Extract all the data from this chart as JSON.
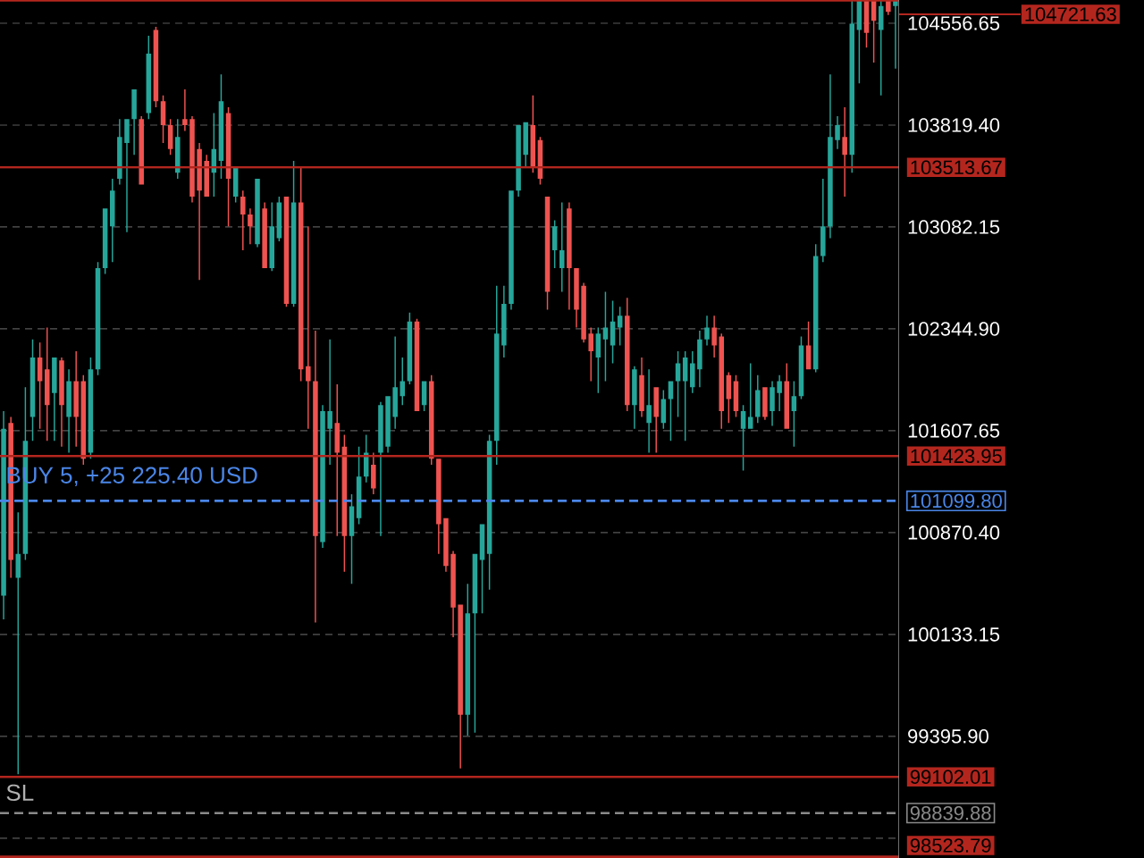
{
  "chart_data": {
    "type": "candlestick",
    "categories": [
      null,
      null,
      null,
      null,
      null,
      null,
      null,
      null,
      null,
      null,
      null,
      null,
      null,
      null,
      null,
      null,
      null,
      null,
      null,
      null,
      null,
      null,
      null,
      null,
      null,
      null,
      null,
      null,
      null,
      null,
      null,
      null,
      null,
      null,
      null,
      null,
      null,
      null,
      null,
      null,
      null,
      null,
      null,
      null,
      null,
      null,
      null,
      null,
      null,
      null,
      null,
      null,
      null,
      null,
      null,
      null,
      null,
      null,
      null,
      null,
      null,
      null,
      null,
      null,
      null,
      null,
      null,
      null,
      null,
      null,
      null,
      null,
      null,
      null,
      null,
      null,
      null,
      null,
      null,
      null,
      null,
      null,
      null,
      null,
      null,
      null,
      null,
      null,
      null,
      null,
      null,
      null,
      null,
      null,
      null,
      null,
      null,
      null,
      null,
      null,
      null,
      null,
      null,
      null,
      null,
      null,
      null,
      null,
      null,
      null,
      null,
      null,
      null,
      null,
      null,
      null,
      null,
      null,
      null,
      null,
      null,
      null,
      null,
      null
    ],
    "ohlc": [
      [
        100414,
        101750,
        100242,
        101621
      ],
      [
        101664,
        101707,
        100543,
        100673
      ],
      [
        100543,
        101017,
        99121,
        100716
      ],
      [
        100716,
        101923,
        100673,
        101535
      ],
      [
        101707,
        102268,
        101535,
        102138
      ],
      [
        102138,
        102246,
        101621,
        101966
      ],
      [
        102052,
        102354,
        101535,
        101793
      ],
      [
        101880,
        102138,
        101535,
        102138
      ],
      [
        102117,
        102138,
        101492,
        101793
      ],
      [
        101707,
        102052,
        101449,
        101966
      ],
      [
        101966,
        102182,
        101492,
        101707
      ],
      [
        101966,
        102009,
        101362,
        101405
      ],
      [
        101449,
        102138,
        101405,
        102052
      ],
      [
        102052,
        102828,
        102009,
        102785
      ],
      [
        102785,
        103216,
        102742,
        103216
      ],
      [
        103087,
        103432,
        102828,
        103345
      ],
      [
        103432,
        103863,
        103389,
        103733
      ],
      [
        103690,
        103863,
        103044,
        103863
      ],
      [
        103863,
        104078,
        103604,
        104078
      ],
      [
        103863,
        103884,
        103389,
        103389
      ],
      [
        103906,
        104466,
        103863,
        104337
      ],
      [
        104509,
        104531,
        103949,
        103992
      ],
      [
        103992,
        104035,
        103690,
        103820
      ],
      [
        103820,
        103863,
        103604,
        103647
      ],
      [
        103475,
        103863,
        103432,
        103733
      ],
      [
        103863,
        104078,
        103777,
        103820
      ],
      [
        103863,
        103884,
        103259,
        103302
      ],
      [
        103647,
        103690,
        102699,
        103345
      ],
      [
        103561,
        103604,
        103302,
        103302
      ],
      [
        103475,
        103906,
        103302,
        103647
      ],
      [
        103561,
        104186,
        103432,
        103992
      ],
      [
        103906,
        103949,
        103087,
        103432
      ],
      [
        103302,
        103518,
        103259,
        103518
      ],
      [
        103302,
        103345,
        102914,
        103173
      ],
      [
        103173,
        103216,
        102957,
        103087
      ],
      [
        102957,
        103432,
        102936,
        103432
      ],
      [
        103216,
        103259,
        102785,
        102785
      ],
      [
        102785,
        103259,
        102763,
        103087
      ],
      [
        103001,
        103302,
        102979,
        103259
      ],
      [
        103302,
        103302,
        102505,
        102526
      ],
      [
        102526,
        103561,
        102505,
        103259
      ],
      [
        103259,
        103518,
        101966,
        102052
      ],
      [
        102074,
        103087,
        101621,
        101966
      ],
      [
        101966,
        102332,
        100220,
        100845
      ],
      [
        100802,
        101793,
        100759,
        101750
      ],
      [
        101621,
        102268,
        101362,
        101750
      ],
      [
        101664,
        101944,
        100845,
        101449
      ],
      [
        101492,
        101578,
        100586,
        100845
      ],
      [
        100845,
        101147,
        100500,
        101060
      ],
      [
        100974,
        101492,
        100931,
        101276
      ],
      [
        101276,
        101578,
        101233,
        101449
      ],
      [
        101362,
        101449,
        101147,
        101190
      ],
      [
        101449,
        101815,
        100845,
        101793
      ],
      [
        101492,
        101858,
        101449,
        101858
      ],
      [
        101707,
        102289,
        101621,
        101923
      ],
      [
        101858,
        102138,
        101793,
        101966
      ],
      [
        101966,
        102462,
        101944,
        102397
      ],
      [
        102397,
        102418,
        101750,
        101750
      ],
      [
        101793,
        101966,
        101750,
        101966
      ],
      [
        101966,
        102009,
        101362,
        101405
      ],
      [
        101405,
        101405,
        100716,
        100931
      ],
      [
        100974,
        100974,
        100586,
        100629
      ],
      [
        100716,
        100737,
        100112,
        100328
      ],
      [
        100349,
        100349,
        99164,
        99552
      ],
      [
        99552,
        100500,
        99401,
        100285
      ],
      [
        100285,
        100716,
        99422,
        100716
      ],
      [
        100673,
        100931,
        100285,
        100931
      ],
      [
        100716,
        101578,
        100457,
        101535
      ],
      [
        101535,
        102656,
        101362,
        102311
      ],
      [
        102225,
        102656,
        102138,
        102526
      ],
      [
        102526,
        103345,
        102483,
        103345
      ],
      [
        103345,
        103820,
        103302,
        103820
      ],
      [
        103604,
        103841,
        103518,
        103841
      ],
      [
        103820,
        104035,
        103475,
        103518
      ],
      [
        103711,
        103733,
        103389,
        103432
      ],
      [
        103302,
        103302,
        102483,
        102613
      ],
      [
        102914,
        103130,
        102785,
        103087
      ],
      [
        102785,
        103259,
        102613,
        102914
      ],
      [
        103216,
        103259,
        102483,
        102785
      ],
      [
        102785,
        102785,
        102354,
        102483
      ],
      [
        102656,
        102677,
        102246,
        102268
      ],
      [
        102311,
        102354,
        101966,
        102182
      ],
      [
        102138,
        102354,
        101880,
        102311
      ],
      [
        102268,
        102613,
        101966,
        102354
      ],
      [
        102225,
        102548,
        102095,
        102397
      ],
      [
        102354,
        102505,
        102225,
        102440
      ],
      [
        102440,
        102569,
        101750,
        101793
      ],
      [
        101793,
        102074,
        101621,
        102052
      ],
      [
        102009,
        102138,
        101707,
        101750
      ],
      [
        101664,
        102052,
        101449,
        101793
      ],
      [
        101923,
        101923,
        101449,
        101707
      ],
      [
        101664,
        101901,
        101621,
        101836
      ],
      [
        101836,
        101966,
        101535,
        101966
      ],
      [
        101966,
        102182,
        101707,
        102095
      ],
      [
        101966,
        102182,
        101535,
        102138
      ],
      [
        101923,
        102182,
        101880,
        102095
      ],
      [
        102052,
        102332,
        101923,
        102268
      ],
      [
        102268,
        102440,
        102225,
        102354
      ],
      [
        102354,
        102440,
        102138,
        102225
      ],
      [
        102289,
        102311,
        101621,
        101750
      ],
      [
        102009,
        102030,
        101664,
        101836
      ],
      [
        101966,
        102009,
        101707,
        101750
      ],
      [
        101621,
        101793,
        101319,
        101750
      ],
      [
        101621,
        102095,
        101621,
        101707
      ],
      [
        101707,
        102009,
        101664,
        101901
      ],
      [
        101923,
        101923,
        101686,
        101707
      ],
      [
        101750,
        101966,
        101642,
        101923
      ],
      [
        101880,
        102009,
        101750,
        101966
      ],
      [
        101966,
        102095,
        101621,
        101621
      ],
      [
        101750,
        101966,
        101492,
        101858
      ],
      [
        101858,
        102289,
        101836,
        102225
      ],
      [
        102225,
        102397,
        102052,
        102052
      ],
      [
        102052,
        102957,
        102030,
        102871
      ],
      [
        102871,
        103432,
        102828,
        103087
      ],
      [
        103087,
        104186,
        103001,
        103733
      ],
      [
        103711,
        103884,
        103647,
        103820
      ],
      [
        103733,
        103949,
        103302,
        103604
      ],
      [
        103604,
        104720,
        103475,
        104553
      ],
      [
        104509,
        104720,
        104121,
        104720
      ],
      [
        104720,
        104720,
        104380,
        104488
      ],
      [
        104720,
        104720,
        104272,
        104574
      ],
      [
        104509,
        104720,
        104035,
        104682
      ],
      [
        104720,
        104720,
        104617,
        104639
      ],
      [
        104682,
        104720,
        104229,
        104720
      ]
    ],
    "colors": [
      "#26a69a",
      "#ef5350",
      "#26a69a",
      "#26a69a",
      "#26a69a",
      "#ef5350",
      "#ef5350",
      "#26a69a",
      "#ef5350",
      "#26a69a",
      "#ef5350",
      "#ef5350",
      "#26a69a",
      "#26a69a",
      "#26a69a",
      "#26a69a",
      "#26a69a",
      "#26a69a",
      "#26a69a",
      "#ef5350",
      "#26a69a",
      "#ef5350",
      "#ef5350",
      "#ef5350",
      "#26a69a",
      "#ef5350",
      "#ef5350",
      "#ef5350",
      "#ef5350",
      "#26a69a",
      "#26a69a",
      "#ef5350",
      "#26a69a",
      "#ef5350",
      "#ef5350",
      "#26a69a",
      "#ef5350",
      "#26a69a",
      "#26a69a",
      "#ef5350",
      "#26a69a",
      "#ef5350",
      "#ef5350",
      "#ef5350",
      "#26a69a",
      "#26a69a",
      "#ef5350",
      "#ef5350",
      "#26a69a",
      "#26a69a",
      "#26a69a",
      "#ef5350",
      "#26a69a",
      "#26a69a",
      "#26a69a",
      "#26a69a",
      "#26a69a",
      "#ef5350",
      "#26a69a",
      "#ef5350",
      "#ef5350",
      "#ef5350",
      "#ef5350",
      "#ef5350",
      "#26a69a",
      "#26a69a",
      "#26a69a",
      "#26a69a",
      "#26a69a",
      "#26a69a",
      "#26a69a",
      "#26a69a",
      "#26a69a",
      "#ef5350",
      "#ef5350",
      "#ef5350",
      "#26a69a",
      "#26a69a",
      "#ef5350",
      "#ef5350",
      "#ef5350",
      "#ef5350",
      "#26a69a",
      "#26a69a",
      "#26a69a",
      "#26a69a",
      "#ef5350",
      "#26a69a",
      "#ef5350",
      "#26a69a",
      "#ef5350",
      "#26a69a",
      "#26a69a",
      "#26a69a",
      "#26a69a",
      "#26a69a",
      "#26a69a",
      "#26a69a",
      "#ef5350",
      "#ef5350",
      "#ef5350",
      "#ef5350",
      "#26a69a",
      "#26a69a",
      "#26a69a",
      "#ef5350",
      "#26a69a",
      "#26a69a",
      "#ef5350",
      "#26a69a",
      "#26a69a",
      "#ef5350",
      "#26a69a",
      "#26a69a",
      "#26a69a",
      "#26a69a",
      "#ef5350",
      "#26a69a",
      "#26a69a",
      "#ef5350",
      "#ef5350",
      "#26a69a",
      "#ef5350",
      "#26a69a"
    ],
    "ylim": [
      98515,
      104725
    ],
    "yticks": [
      {
        "value": 104556.65,
        "label": "104556.65"
      },
      {
        "value": 103819.4,
        "label": "103819.40"
      },
      {
        "value": 103082.15,
        "label": "103082.15"
      },
      {
        "value": 102344.9,
        "label": "102344.90"
      },
      {
        "value": 101607.65,
        "label": "101607.65"
      },
      {
        "value": 100870.4,
        "label": "100870.40"
      },
      {
        "value": 100133.15,
        "label": "100133.15"
      },
      {
        "value": 99395.9,
        "label": "99395.90"
      },
      {
        "value": 98658.65,
        "label": null
      }
    ],
    "annotations": [
      {
        "text": "BUY 5, +25 225.40 USD",
        "y": 101099.8
      },
      {
        "text": "SL",
        "y": 99102.01
      }
    ],
    "grid": "y",
    "tick_labels": "y",
    "ref_lines": [
      {
        "axis": "y",
        "value": 104721.63,
        "color": "#b3261e",
        "line_style": "solid",
        "label": "104721.63"
      },
      {
        "axis": "y",
        "value": 103513.67,
        "color": "#b3261e",
        "line_style": "solid",
        "label": "103513.67"
      },
      {
        "axis": "y",
        "value": 101423.95,
        "color": "#b3261e",
        "line_style": "solid",
        "label": "101423.95"
      },
      {
        "axis": "y",
        "value": 101099.8,
        "color": "#4a86e8",
        "line_style": "dashed",
        "label": "101099.80"
      },
      {
        "axis": "y",
        "value": 99102.01,
        "color": "#b3261e",
        "line_style": "solid",
        "label": "99102.01"
      },
      {
        "axis": "y",
        "value": 98839.88,
        "color": "#8a8a8a",
        "line_style": "dashed",
        "label": "98839.88"
      },
      {
        "axis": "y",
        "value": 98523.79,
        "color": "#b3261e",
        "line_style": "solid",
        "label": "98523.79"
      }
    ]
  }
}
